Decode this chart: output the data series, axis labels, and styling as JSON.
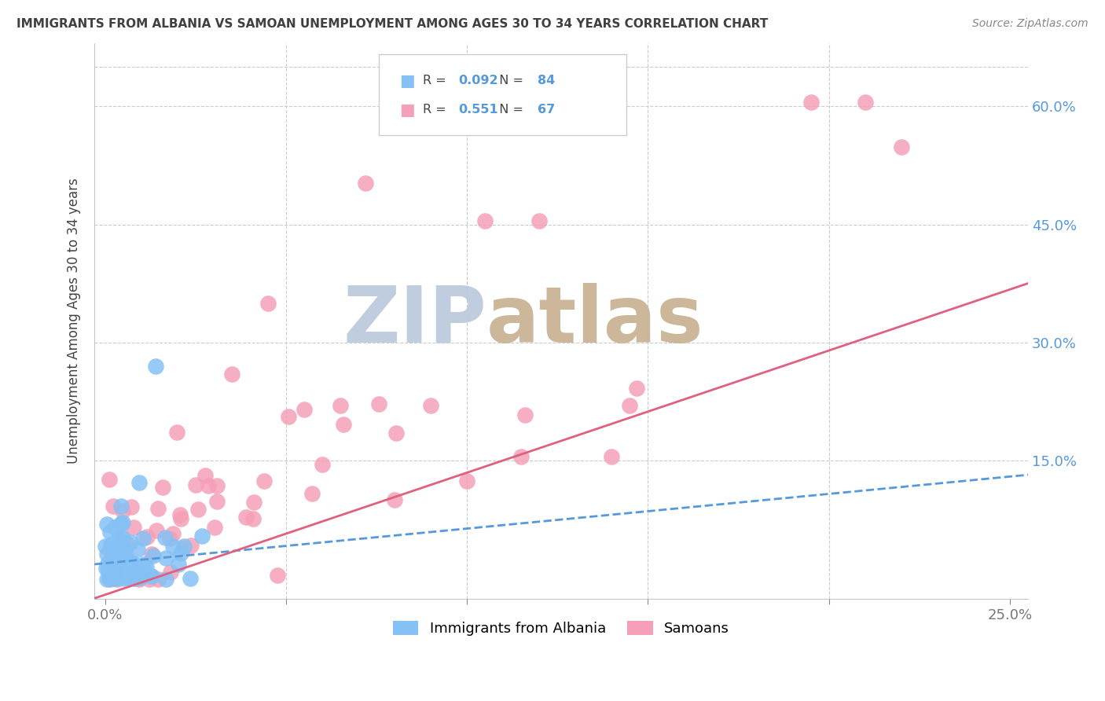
{
  "title": "IMMIGRANTS FROM ALBANIA VS SAMOAN UNEMPLOYMENT AMONG AGES 30 TO 34 YEARS CORRELATION CHART",
  "source": "Source: ZipAtlas.com",
  "ylabel": "Unemployment Among Ages 30 to 34 years",
  "ytick_labels": [
    "60.0%",
    "45.0%",
    "30.0%",
    "15.0%"
  ],
  "ytick_values": [
    0.6,
    0.45,
    0.3,
    0.15
  ],
  "xlim": [
    -0.003,
    0.255
  ],
  "ylim": [
    -0.025,
    0.68
  ],
  "albania_R": 0.092,
  "albania_N": 84,
  "samoan_R": 0.551,
  "samoan_N": 67,
  "albania_color": "#85C1F5",
  "samoan_color": "#F5A0B8",
  "albania_line_color": "#5599DD",
  "samoan_line_color": "#E06080",
  "background_color": "#FFFFFF",
  "grid_color": "#CCCCCC",
  "watermark_left_color": "#9EB8D8",
  "watermark_right_color": "#C8B090",
  "title_color": "#404040",
  "source_color": "#888888",
  "tick_color_right": "#5599DD",
  "tick_color_bottom": "#777777"
}
